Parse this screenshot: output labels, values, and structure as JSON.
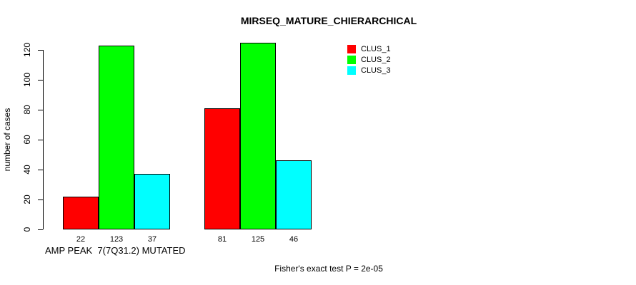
{
  "chart_data": {
    "type": "bar",
    "title": "MIRSEQ_MATURE_CHIERARCHICAL",
    "ylabel": "number of cases",
    "xlabel": "",
    "ylim": [
      0,
      120
    ],
    "yticks": [
      0,
      20,
      40,
      60,
      80,
      100,
      120
    ],
    "grid": false,
    "legend_position": "top-right",
    "groups": [
      "AMP PEAK  7(7Q31.2) MUTATED",
      ""
    ],
    "series": [
      {
        "name": "CLUS_1",
        "color": "#ff0000",
        "values": [
          22,
          81
        ]
      },
      {
        "name": "CLUS_2",
        "color": "#00ff00",
        "values": [
          123,
          125
        ]
      },
      {
        "name": "CLUS_3",
        "color": "#00ffff",
        "values": [
          37,
          46
        ]
      }
    ],
    "bar_labels": [
      [
        22,
        123,
        37
      ],
      [
        81,
        125,
        46
      ]
    ],
    "annotation": "Fisher's exact test P = 2e-05"
  }
}
